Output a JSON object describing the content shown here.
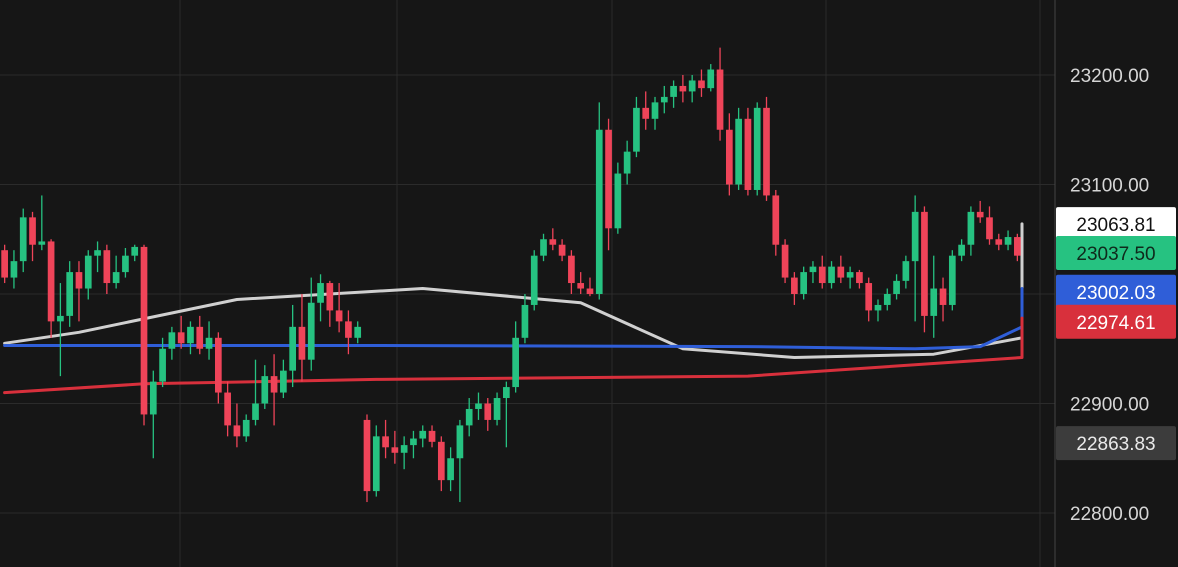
{
  "chart_data": {
    "type": "candlestick",
    "ylim": [
      22765,
      23265
    ],
    "y_ticks": [
      22800,
      22900,
      23000,
      23100,
      23200
    ],
    "y_tick_labels": [
      "22800.00",
      "22900.00",
      "23000.00",
      "23100.00",
      "23200.00"
    ],
    "grid": true,
    "colors": {
      "background": "#161616",
      "grid": "#2b2b2b",
      "up": "#26c281",
      "down": "#ef4459",
      "ma_gray": "#d0d0d0",
      "ma_blue": "#2f5ed8",
      "ma_red": "#d8303c"
    },
    "candles": [
      [
        23040,
        23045,
        23010,
        23015
      ],
      [
        23015,
        23040,
        23005,
        23030
      ],
      [
        23030,
        23078,
        23020,
        23070
      ],
      [
        23070,
        23075,
        23030,
        23045
      ],
      [
        23045,
        23090,
        23040,
        23048
      ],
      [
        23048,
        23050,
        22960,
        22975
      ],
      [
        22975,
        23010,
        22925,
        22980
      ],
      [
        22980,
        23030,
        22970,
        23020
      ],
      [
        23020,
        23030,
        22975,
        23005
      ],
      [
        23005,
        23040,
        22995,
        23035
      ],
      [
        23035,
        23048,
        23020,
        23040
      ],
      [
        23040,
        23045,
        23000,
        23010
      ],
      [
        23010,
        23035,
        23005,
        23020
      ],
      [
        23020,
        23042,
        23015,
        23035
      ],
      [
        23035,
        23045,
        23030,
        23043
      ],
      [
        23043,
        23045,
        22880,
        22890
      ],
      [
        22890,
        22930,
        22850,
        22920
      ],
      [
        22920,
        22960,
        22915,
        22950
      ],
      [
        22950,
        22970,
        22940,
        22965
      ],
      [
        22965,
        22980,
        22950,
        22955
      ],
      [
        22955,
        22975,
        22945,
        22970
      ],
      [
        22970,
        22980,
        22945,
        22950
      ],
      [
        22950,
        22975,
        22940,
        22960
      ],
      [
        22960,
        22965,
        22900,
        22910
      ],
      [
        22910,
        22920,
        22870,
        22880
      ],
      [
        22880,
        22900,
        22860,
        22870
      ],
      [
        22870,
        22890,
        22865,
        22885
      ],
      [
        22885,
        22940,
        22880,
        22900
      ],
      [
        22900,
        22935,
        22895,
        22925
      ],
      [
        22925,
        22945,
        22880,
        22910
      ],
      [
        22910,
        22940,
        22905,
        22930
      ],
      [
        22930,
        22990,
        22915,
        22970
      ],
      [
        22970,
        23000,
        22920,
        22940
      ],
      [
        22940,
        23015,
        22930,
        22992
      ],
      [
        22992,
        23018,
        22975,
        23010
      ],
      [
        23010,
        23012,
        22970,
        22985
      ],
      [
        22985,
        23010,
        22965,
        22975
      ],
      [
        22975,
        22985,
        22945,
        22960
      ],
      [
        22960,
        22975,
        22955,
        22970
      ],
      [
        22885,
        22890,
        22810,
        22820
      ],
      [
        22820,
        22880,
        22815,
        22870
      ],
      [
        22870,
        22885,
        22850,
        22860
      ],
      [
        22860,
        22875,
        22845,
        22855
      ],
      [
        22855,
        22870,
        22840,
        22862
      ],
      [
        22862,
        22875,
        22850,
        22868
      ],
      [
        22868,
        22880,
        22860,
        22875
      ],
      [
        22875,
        22880,
        22860,
        22865
      ],
      [
        22865,
        22870,
        22820,
        22830
      ],
      [
        22830,
        22860,
        22820,
        22850
      ],
      [
        22850,
        22885,
        22810,
        22880
      ],
      [
        22880,
        22905,
        22870,
        22895
      ],
      [
        22895,
        22910,
        22885,
        22900
      ],
      [
        22900,
        22905,
        22875,
        22885
      ],
      [
        22885,
        22910,
        22880,
        22905
      ],
      [
        22905,
        22920,
        22860,
        22915
      ],
      [
        22915,
        22975,
        22910,
        22960
      ],
      [
        22960,
        23000,
        22955,
        22990
      ],
      [
        22990,
        23040,
        22985,
        23035
      ],
      [
        23035,
        23055,
        23030,
        23050
      ],
      [
        23050,
        23060,
        23040,
        23045
      ],
      [
        23045,
        23050,
        23030,
        23035
      ],
      [
        23035,
        23040,
        23000,
        23010
      ],
      [
        23010,
        23020,
        23000,
        23005
      ],
      [
        23005,
        23015,
        22998,
        23000
      ],
      [
        23000,
        23175,
        22995,
        23150
      ],
      [
        23150,
        23160,
        23040,
        23060
      ],
      [
        23060,
        23120,
        23055,
        23110
      ],
      [
        23110,
        23140,
        23100,
        23130
      ],
      [
        23130,
        23180,
        23125,
        23170
      ],
      [
        23170,
        23185,
        23150,
        23160
      ],
      [
        23160,
        23180,
        23150,
        23175
      ],
      [
        23175,
        23190,
        23165,
        23180
      ],
      [
        23180,
        23195,
        23170,
        23190
      ],
      [
        23190,
        23200,
        23175,
        23185
      ],
      [
        23185,
        23200,
        23175,
        23195
      ],
      [
        23195,
        23205,
        23180,
        23188
      ],
      [
        23188,
        23210,
        23185,
        23205
      ],
      [
        23205,
        23225,
        23140,
        23150
      ],
      [
        23150,
        23165,
        23090,
        23100
      ],
      [
        23100,
        23170,
        23095,
        23160
      ],
      [
        23160,
        23170,
        23090,
        23095
      ],
      [
        23095,
        23175,
        23090,
        23170
      ],
      [
        23170,
        23180,
        23085,
        23090
      ],
      [
        23090,
        23095,
        23035,
        23045
      ],
      [
        23045,
        23050,
        23010,
        23015
      ],
      [
        23015,
        23020,
        22990,
        23000
      ],
      [
        23000,
        23025,
        22995,
        23020
      ],
      [
        23020,
        23030,
        23010,
        23025
      ],
      [
        23025,
        23035,
        23005,
        23010
      ],
      [
        23010,
        23030,
        23005,
        23025
      ],
      [
        23025,
        23035,
        23010,
        23015
      ],
      [
        23015,
        23025,
        23005,
        23020
      ],
      [
        23020,
        23022,
        23005,
        23010
      ],
      [
        23010,
        23015,
        22975,
        22985
      ],
      [
        22985,
        22995,
        22975,
        22990
      ],
      [
        22990,
        23005,
        22985,
        23000
      ],
      [
        23000,
        23018,
        22995,
        23012
      ],
      [
        23012,
        23035,
        23005,
        23030
      ],
      [
        23030,
        23090,
        22975,
        23075
      ],
      [
        23075,
        23080,
        22965,
        22980
      ],
      [
        22980,
        23035,
        22960,
        23005
      ],
      [
        23005,
        23015,
        22975,
        22990
      ],
      [
        22990,
        23040,
        22985,
        23035
      ],
      [
        23035,
        23050,
        23030,
        23045
      ],
      [
        23045,
        23080,
        23035,
        23075
      ],
      [
        23075,
        23085,
        23065,
        23070
      ],
      [
        23070,
        23080,
        23045,
        23050
      ],
      [
        23050,
        23055,
        23040,
        23045
      ],
      [
        23045,
        23058,
        23040,
        23052
      ],
      [
        23052,
        23055,
        23030,
        23035
      ]
    ],
    "moving_averages": [
      {
        "color": "#d0d0d0",
        "points": [
          [
            0,
            22955
          ],
          [
            8,
            22965
          ],
          [
            25,
            22995
          ],
          [
            45,
            23005
          ],
          [
            62,
            22992
          ],
          [
            73,
            22950
          ],
          [
            85,
            22942
          ],
          [
            100,
            22945
          ],
          [
            112,
            22960
          ],
          [
            125,
            23000
          ],
          [
            140,
            23020
          ],
          [
            155,
            23030
          ],
          [
            170,
            23045
          ],
          [
            184,
            23060
          ],
          [
            192,
            23064
          ]
        ]
      },
      {
        "color": "#2f5ed8",
        "points": [
          [
            0,
            22953
          ],
          [
            40,
            22953
          ],
          [
            80,
            22952
          ],
          [
            98,
            22950
          ],
          [
            105,
            22952
          ],
          [
            125,
            22970
          ],
          [
            140,
            22992
          ],
          [
            155,
            23003
          ],
          [
            165,
            23005
          ],
          [
            184,
            23002
          ],
          [
            192,
            23002
          ]
        ]
      },
      {
        "color": "#d8303c",
        "points": [
          [
            0,
            22910
          ],
          [
            15,
            22918
          ],
          [
            40,
            22922
          ],
          [
            80,
            22925
          ],
          [
            110,
            22942
          ],
          [
            130,
            22965
          ],
          [
            150,
            22978
          ],
          [
            170,
            22974
          ],
          [
            192,
            22975
          ]
        ]
      }
    ],
    "price_badges": [
      {
        "label": "23063.81",
        "value": 23063.81,
        "bg": "#ffffff",
        "fg": "#111111"
      },
      {
        "label": "23037.50",
        "value": 23037.5,
        "bg": "#26c281",
        "fg": "#0f2a1c"
      },
      {
        "label": "23002.03",
        "value": 23002.03,
        "bg": "#2f5ed8",
        "fg": "#ffffff"
      },
      {
        "label": "22974.61",
        "value": 22974.61,
        "bg": "#d8303c",
        "fg": "#ffffff"
      },
      {
        "label": "22863.83",
        "value": 22863.83,
        "bg": "#3c3c3c",
        "fg": "#eaeaea"
      }
    ]
  }
}
